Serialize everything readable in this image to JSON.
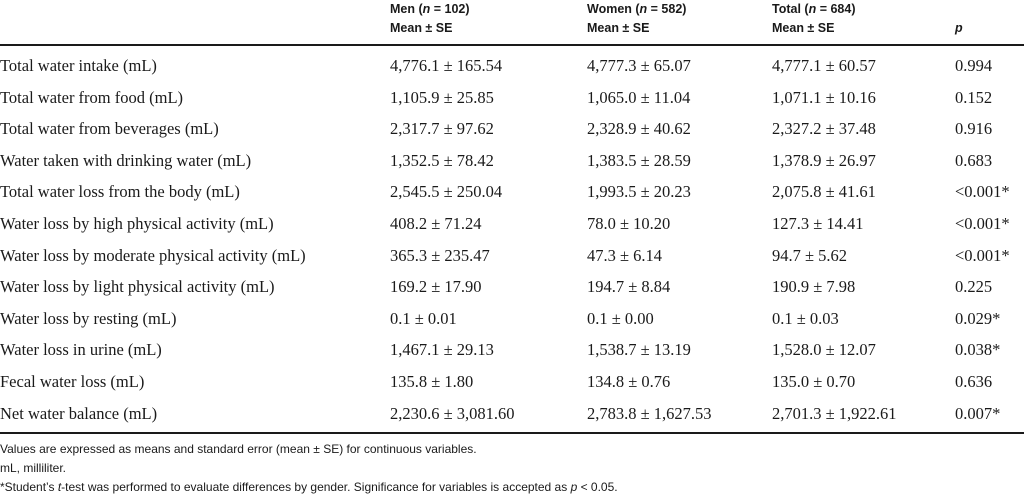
{
  "table": {
    "header": {
      "men": {
        "label": "Men (",
        "n_sym": "n",
        "n_val": " = 102)",
        "sub": "Mean ± SE"
      },
      "women": {
        "label": "Women (",
        "n_sym": "n",
        "n_val": " = 582)",
        "sub": "Mean ± SE"
      },
      "total": {
        "label": "Total (",
        "n_sym": "n",
        "n_val": " = 684)",
        "sub": "Mean ± SE"
      },
      "p": "p"
    },
    "rows": [
      {
        "label": "Total water intake (mL)",
        "men": "4,776.1 ± 165.54",
        "women": "4,777.3 ± 65.07",
        "total": "4,777.1 ± 60.57",
        "p": "0.994"
      },
      {
        "label": "Total water from food (mL)",
        "men": "1,105.9 ± 25.85",
        "women": "1,065.0 ± 11.04",
        "total": "1,071.1 ± 10.16",
        "p": "0.152"
      },
      {
        "label": "Total water from beverages (mL)",
        "men": "2,317.7 ± 97.62",
        "women": "2,328.9 ± 40.62",
        "total": "2,327.2 ± 37.48",
        "p": "0.916"
      },
      {
        "label": "Water taken with drinking water (mL)",
        "men": "1,352.5 ± 78.42",
        "women": "1,383.5 ± 28.59",
        "total": "1,378.9 ± 26.97",
        "p": "0.683"
      },
      {
        "label": "Total water loss from the body (mL)",
        "men": "2,545.5 ± 250.04",
        "women": "1,993.5 ± 20.23",
        "total": "2,075.8 ± 41.61",
        "p": "<0.001*"
      },
      {
        "label": "Water loss by high physical activity (mL)",
        "men": "408.2 ± 71.24",
        "women": "78.0 ± 10.20",
        "total": "127.3 ± 14.41",
        "p": "<0.001*"
      },
      {
        "label": "Water loss by moderate physical activity (mL)",
        "men": "365.3 ± 235.47",
        "women": "47.3 ± 6.14",
        "total": "94.7 ± 5.62",
        "p": "<0.001*"
      },
      {
        "label": "Water loss by light physical activity (mL)",
        "men": "169.2 ± 17.90",
        "women": "194.7 ± 8.84",
        "total": "190.9 ± 7.98",
        "p": "0.225"
      },
      {
        "label": "Water loss by resting (mL)",
        "men": "0.1 ± 0.01",
        "women": "0.1 ± 0.00",
        "total": "0.1 ± 0.03",
        "p": "0.029*"
      },
      {
        "label": "Water loss in urine (mL)",
        "men": "1,467.1 ± 29.13",
        "women": "1,538.7 ± 13.19",
        "total": "1,528.0 ± 12.07",
        "p": "0.038*"
      },
      {
        "label": "Fecal water loss (mL)",
        "men": "135.8 ± 1.80",
        "women": "134.8 ± 0.76",
        "total": "135.0 ± 0.70",
        "p": "0.636"
      },
      {
        "label": "Net water balance (mL)",
        "men": "2,230.6 ± 3,081.60",
        "women": "2,783.8 ± 1,627.53",
        "total": "2,701.3 ± 1,922.61",
        "p": "0.007*"
      }
    ]
  },
  "footnotes": {
    "line1": "Values are expressed as means and standard error (mean ± SE) for continuous variables.",
    "line2": "mL, milliliter.",
    "line3_a": "*Student’s ",
    "line3_t": "t",
    "line3_b": "-test was performed to evaluate differences by gender. Significance for variables is accepted as ",
    "line3_p": "p",
    "line3_c": " < 0.05."
  }
}
